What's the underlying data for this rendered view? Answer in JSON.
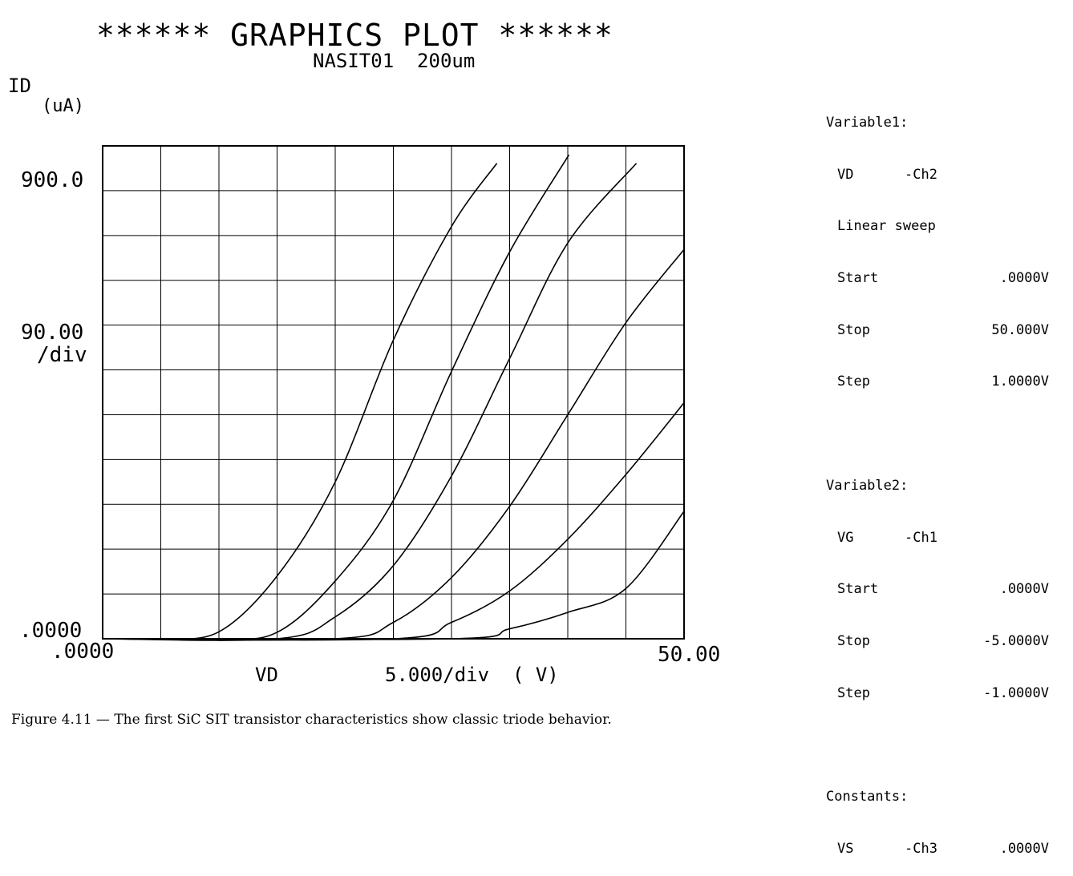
{
  "chart_data": {
    "type": "line",
    "title": "****** GRAPHICS PLOT ******",
    "subtitle": "NASIT01  200um",
    "ylabel": "ID",
    "yunit": "(uA)",
    "xlabel": "VD",
    "x_div_label": "5.000/div  ( V)",
    "y_tick_top": "900.0",
    "y_div_value": "90.00",
    "y_div_unit": "/div",
    "y_tick_bottom": ".0000",
    "x_tick_left": ".0000",
    "x_tick_right": "50.00",
    "xlim": [
      0,
      50
    ],
    "ylim": [
      0,
      990
    ],
    "x_grid_step": 5,
    "y_grid_step": 90,
    "grid": true,
    "series": [
      {
        "x": [
          0,
          5,
          10,
          15,
          20,
          25,
          30,
          33.9
        ],
        "values": [
          0,
          0,
          14,
          126,
          315,
          600,
          828,
          955
        ]
      },
      {
        "x": [
          0,
          10,
          15,
          20,
          25,
          30,
          35,
          40.1
        ],
        "values": [
          0,
          0,
          13,
          116,
          278,
          537,
          777,
          972
        ]
      },
      {
        "x": [
          0,
          15,
          20,
          25,
          30,
          35,
          40,
          45.9
        ],
        "values": [
          0,
          0,
          44,
          147,
          327,
          563,
          795,
          955
        ]
      },
      {
        "x": [
          0,
          20,
          25,
          30,
          35,
          40,
          45,
          50
        ],
        "values": [
          0,
          0,
          33,
          123,
          266,
          450,
          635,
          782
        ]
      },
      {
        "x": [
          0,
          25,
          30,
          35,
          40,
          45,
          50
        ],
        "values": [
          0,
          0,
          33,
          96,
          200,
          330,
          474
        ]
      },
      {
        "x": [
          0,
          30,
          35,
          40,
          45,
          50
        ],
        "values": [
          0,
          0,
          20,
          53,
          101,
          256
        ]
      }
    ]
  },
  "panel": {
    "var1_head": "Variable1:",
    "var1_name": "VD",
    "var1_ch": "-Ch2",
    "var1_mode": "Linear sweep",
    "var1_start_label": "Start",
    "var1_start_value": ".0000V",
    "var1_stop_label": "Stop",
    "var1_stop_value": "50.000V",
    "var1_step_label": "Step",
    "var1_step_value": "1.0000V",
    "var2_head": "Variable2:",
    "var2_name": "VG",
    "var2_ch": "-Ch1",
    "var2_start_label": "Start",
    "var2_start_value": ".0000V",
    "var2_stop_label": "Stop",
    "var2_stop_value": "-5.0000V",
    "var2_step_label": "Step",
    "var2_step_value": "-1.0000V",
    "const_head": "Constants:",
    "const_name": "VS",
    "const_ch": "-Ch3",
    "const_value": ".0000V"
  },
  "caption": "Figure 4.11 — The first SiC SIT transistor characteristics show classic triode behavior."
}
